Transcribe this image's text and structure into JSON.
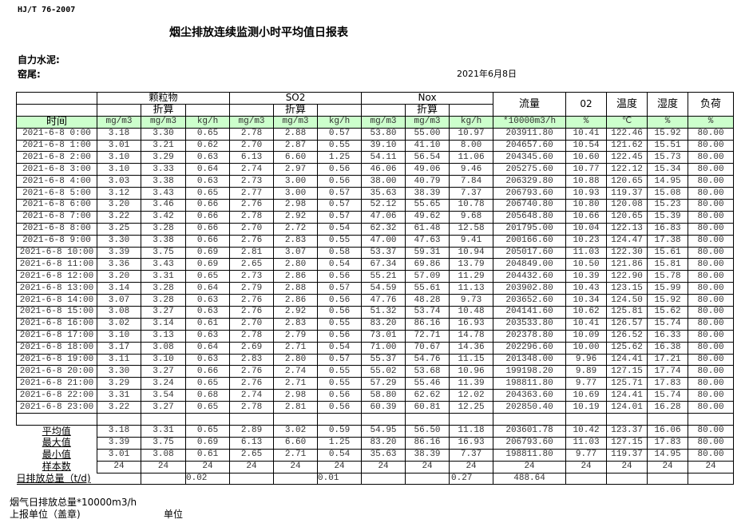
{
  "standard": "HJ/T  76-2007",
  "title": "烟尘排放连续监测小时平均值日报表",
  "company": "自力水泥:",
  "location": "窑尾:",
  "date": "2021年6月8日",
  "header": {
    "groups": [
      "颗粒物",
      "SO2",
      "Nox"
    ],
    "converted": "折算",
    "flow": "流量",
    "o2": "02",
    "temperature": "温度",
    "humidity": "湿度",
    "load": "负荷",
    "time": "时间",
    "units": [
      "mg/m3",
      "mg/m3",
      "kg/h",
      "mg/m3",
      "mg/m3",
      "kg/h",
      "mg/m3",
      "mg/m3",
      "kg/h",
      "*10000m3/h",
      "%",
      "℃",
      "%",
      "%"
    ]
  },
  "rows": [
    [
      "2021-6-8 0:00",
      "3.18",
      "3.30",
      "0.65",
      "2.78",
      "2.88",
      "0.57",
      "53.80",
      "55.00",
      "10.97",
      "203911.80",
      "10.41",
      "122.46",
      "15.92",
      "80.00"
    ],
    [
      "2021-6-8 1:00",
      "3.01",
      "3.21",
      "0.62",
      "2.70",
      "2.87",
      "0.55",
      "39.10",
      "41.10",
      "8.00",
      "204657.60",
      "10.54",
      "121.62",
      "15.51",
      "80.00"
    ],
    [
      "2021-6-8 2:00",
      "3.10",
      "3.29",
      "0.63",
      "6.13",
      "6.60",
      "1.25",
      "54.11",
      "56.54",
      "11.06",
      "204345.60",
      "10.60",
      "122.45",
      "15.73",
      "80.00"
    ],
    [
      "2021-6-8 3:00",
      "3.10",
      "3.33",
      "0.64",
      "2.74",
      "2.97",
      "0.56",
      "46.06",
      "49.06",
      "9.46",
      "205275.60",
      "10.77",
      "122.12",
      "15.34",
      "80.00"
    ],
    [
      "2021-6-8 4:00",
      "3.03",
      "3.38",
      "0.63",
      "2.73",
      "3.00",
      "0.56",
      "38.00",
      "40.79",
      "7.84",
      "206329.80",
      "10.88",
      "120.65",
      "14.95",
      "80.00"
    ],
    [
      "2021-6-8 5:00",
      "3.12",
      "3.43",
      "0.65",
      "2.77",
      "3.00",
      "0.57",
      "35.63",
      "38.39",
      "7.37",
      "206793.60",
      "10.93",
      "119.37",
      "15.08",
      "80.00"
    ],
    [
      "2021-6-8 6:00",
      "3.20",
      "3.46",
      "0.66",
      "2.76",
      "2.98",
      "0.57",
      "52.12",
      "55.65",
      "10.78",
      "206740.80",
      "10.80",
      "120.08",
      "15.23",
      "80.00"
    ],
    [
      "2021-6-8 7:00",
      "3.22",
      "3.42",
      "0.66",
      "2.78",
      "2.92",
      "0.57",
      "47.06",
      "49.62",
      "9.68",
      "205648.80",
      "10.66",
      "120.65",
      "15.39",
      "80.00"
    ],
    [
      "2021-6-8 8:00",
      "3.25",
      "3.28",
      "0.66",
      "2.70",
      "2.72",
      "0.54",
      "62.32",
      "61.48",
      "12.58",
      "201795.00",
      "10.04",
      "122.13",
      "16.83",
      "80.00"
    ],
    [
      "2021-6-8 9:00",
      "3.30",
      "3.38",
      "0.66",
      "2.76",
      "2.83",
      "0.55",
      "47.00",
      "47.63",
      "9.41",
      "200166.60",
      "10.23",
      "124.47",
      "17.38",
      "80.00"
    ],
    [
      "2021-6-8 10:00",
      "3.39",
      "3.75",
      "0.69",
      "2.81",
      "3.07",
      "0.58",
      "53.37",
      "59.31",
      "10.94",
      "205017.60",
      "11.03",
      "122.30",
      "15.61",
      "80.00"
    ],
    [
      "2021-6-8 11:00",
      "3.36",
      "3.43",
      "0.69",
      "2.65",
      "2.80",
      "0.54",
      "67.34",
      "69.86",
      "13.79",
      "204849.00",
      "10.50",
      "121.86",
      "15.81",
      "80.00"
    ],
    [
      "2021-6-8 12:00",
      "3.20",
      "3.31",
      "0.65",
      "2.73",
      "2.86",
      "0.56",
      "55.21",
      "57.09",
      "11.29",
      "204432.60",
      "10.39",
      "122.90",
      "15.78",
      "80.00"
    ],
    [
      "2021-6-8 13:00",
      "3.14",
      "3.28",
      "0.64",
      "2.79",
      "2.88",
      "0.57",
      "54.59",
      "55.61",
      "11.13",
      "203902.80",
      "10.43",
      "123.15",
      "15.99",
      "80.00"
    ],
    [
      "2021-6-8 14:00",
      "3.07",
      "3.28",
      "0.63",
      "2.76",
      "2.86",
      "0.56",
      "47.76",
      "48.28",
      "9.73",
      "203652.60",
      "10.34",
      "124.50",
      "15.92",
      "80.00"
    ],
    [
      "2021-6-8 15:00",
      "3.08",
      "3.27",
      "0.63",
      "2.76",
      "2.92",
      "0.56",
      "51.32",
      "53.74",
      "10.48",
      "204141.60",
      "10.62",
      "125.81",
      "15.62",
      "80.00"
    ],
    [
      "2021-6-8 16:00",
      "3.02",
      "3.14",
      "0.61",
      "2.70",
      "2.83",
      "0.55",
      "83.20",
      "86.16",
      "16.93",
      "203533.80",
      "10.41",
      "126.57",
      "15.74",
      "80.00"
    ],
    [
      "2021-6-8 17:00",
      "3.10",
      "3.13",
      "0.63",
      "2.78",
      "2.79",
      "0.56",
      "73.01",
      "72.71",
      "14.78",
      "202378.80",
      "10.09",
      "126.52",
      "16.33",
      "80.00"
    ],
    [
      "2021-6-8 18:00",
      "3.17",
      "3.08",
      "0.64",
      "2.69",
      "2.71",
      "0.54",
      "71.00",
      "70.67",
      "14.36",
      "202296.60",
      "10.00",
      "125.62",
      "16.38",
      "80.00"
    ],
    [
      "2021-6-8 19:00",
      "3.11",
      "3.10",
      "0.63",
      "2.83",
      "2.80",
      "0.57",
      "55.37",
      "54.76",
      "11.15",
      "201348.00",
      "9.96",
      "124.41",
      "17.21",
      "80.00"
    ],
    [
      "2021-6-8 20:00",
      "3.30",
      "3.27",
      "0.66",
      "2.76",
      "2.74",
      "0.55",
      "55.02",
      "53.68",
      "10.96",
      "199198.20",
      "9.89",
      "127.15",
      "17.74",
      "80.00"
    ],
    [
      "2021-6-8 21:00",
      "3.29",
      "3.24",
      "0.65",
      "2.76",
      "2.71",
      "0.55",
      "57.29",
      "55.46",
      "11.39",
      "198811.80",
      "9.77",
      "125.71",
      "17.83",
      "80.00"
    ],
    [
      "2021-6-8 22:00",
      "3.31",
      "3.54",
      "0.68",
      "2.74",
      "2.98",
      "0.56",
      "58.80",
      "62.62",
      "12.02",
      "204363.60",
      "10.69",
      "124.41",
      "15.74",
      "80.00"
    ],
    [
      "2021-6-8 23:00",
      "3.22",
      "3.27",
      "0.65",
      "2.78",
      "2.81",
      "0.56",
      "60.39",
      "60.81",
      "12.25",
      "202850.40",
      "10.19",
      "124.01",
      "16.28",
      "80.00"
    ]
  ],
  "summary": [
    [
      "平均值",
      "3.18",
      "3.31",
      "0.65",
      "2.89",
      "3.02",
      "0.59",
      "54.95",
      "56.50",
      "11.18",
      "203601.78",
      "10.42",
      "123.37",
      "16.06",
      "80.00"
    ],
    [
      "最大值",
      "3.39",
      "3.75",
      "0.69",
      "6.13",
      "6.60",
      "1.25",
      "83.20",
      "86.16",
      "16.93",
      "206793.60",
      "11.03",
      "127.15",
      "17.83",
      "80.00"
    ],
    [
      "最小值",
      "3.01",
      "3.08",
      "0.61",
      "2.65",
      "2.71",
      "0.54",
      "35.63",
      "38.39",
      "7.37",
      "198811.80",
      "9.77",
      "119.37",
      "14.95",
      "80.00"
    ],
    [
      "样本数",
      "24",
      "24",
      "24",
      "24",
      "24",
      "24",
      "24",
      "24",
      "24",
      "24",
      "24",
      "24",
      "24",
      "24"
    ]
  ],
  "daily_total": {
    "label": "日排放总量（t/d)",
    "values": [
      "",
      "0.02",
      "",
      "",
      "0.01",
      "",
      "",
      "0.27",
      "488.64",
      "",
      "",
      "",
      ""
    ]
  },
  "footer": {
    "flue_gas_total": "烟气日排放总量*10000m3/h",
    "reporting_unit": "上报单位（盖章)",
    "unit": "单位"
  }
}
